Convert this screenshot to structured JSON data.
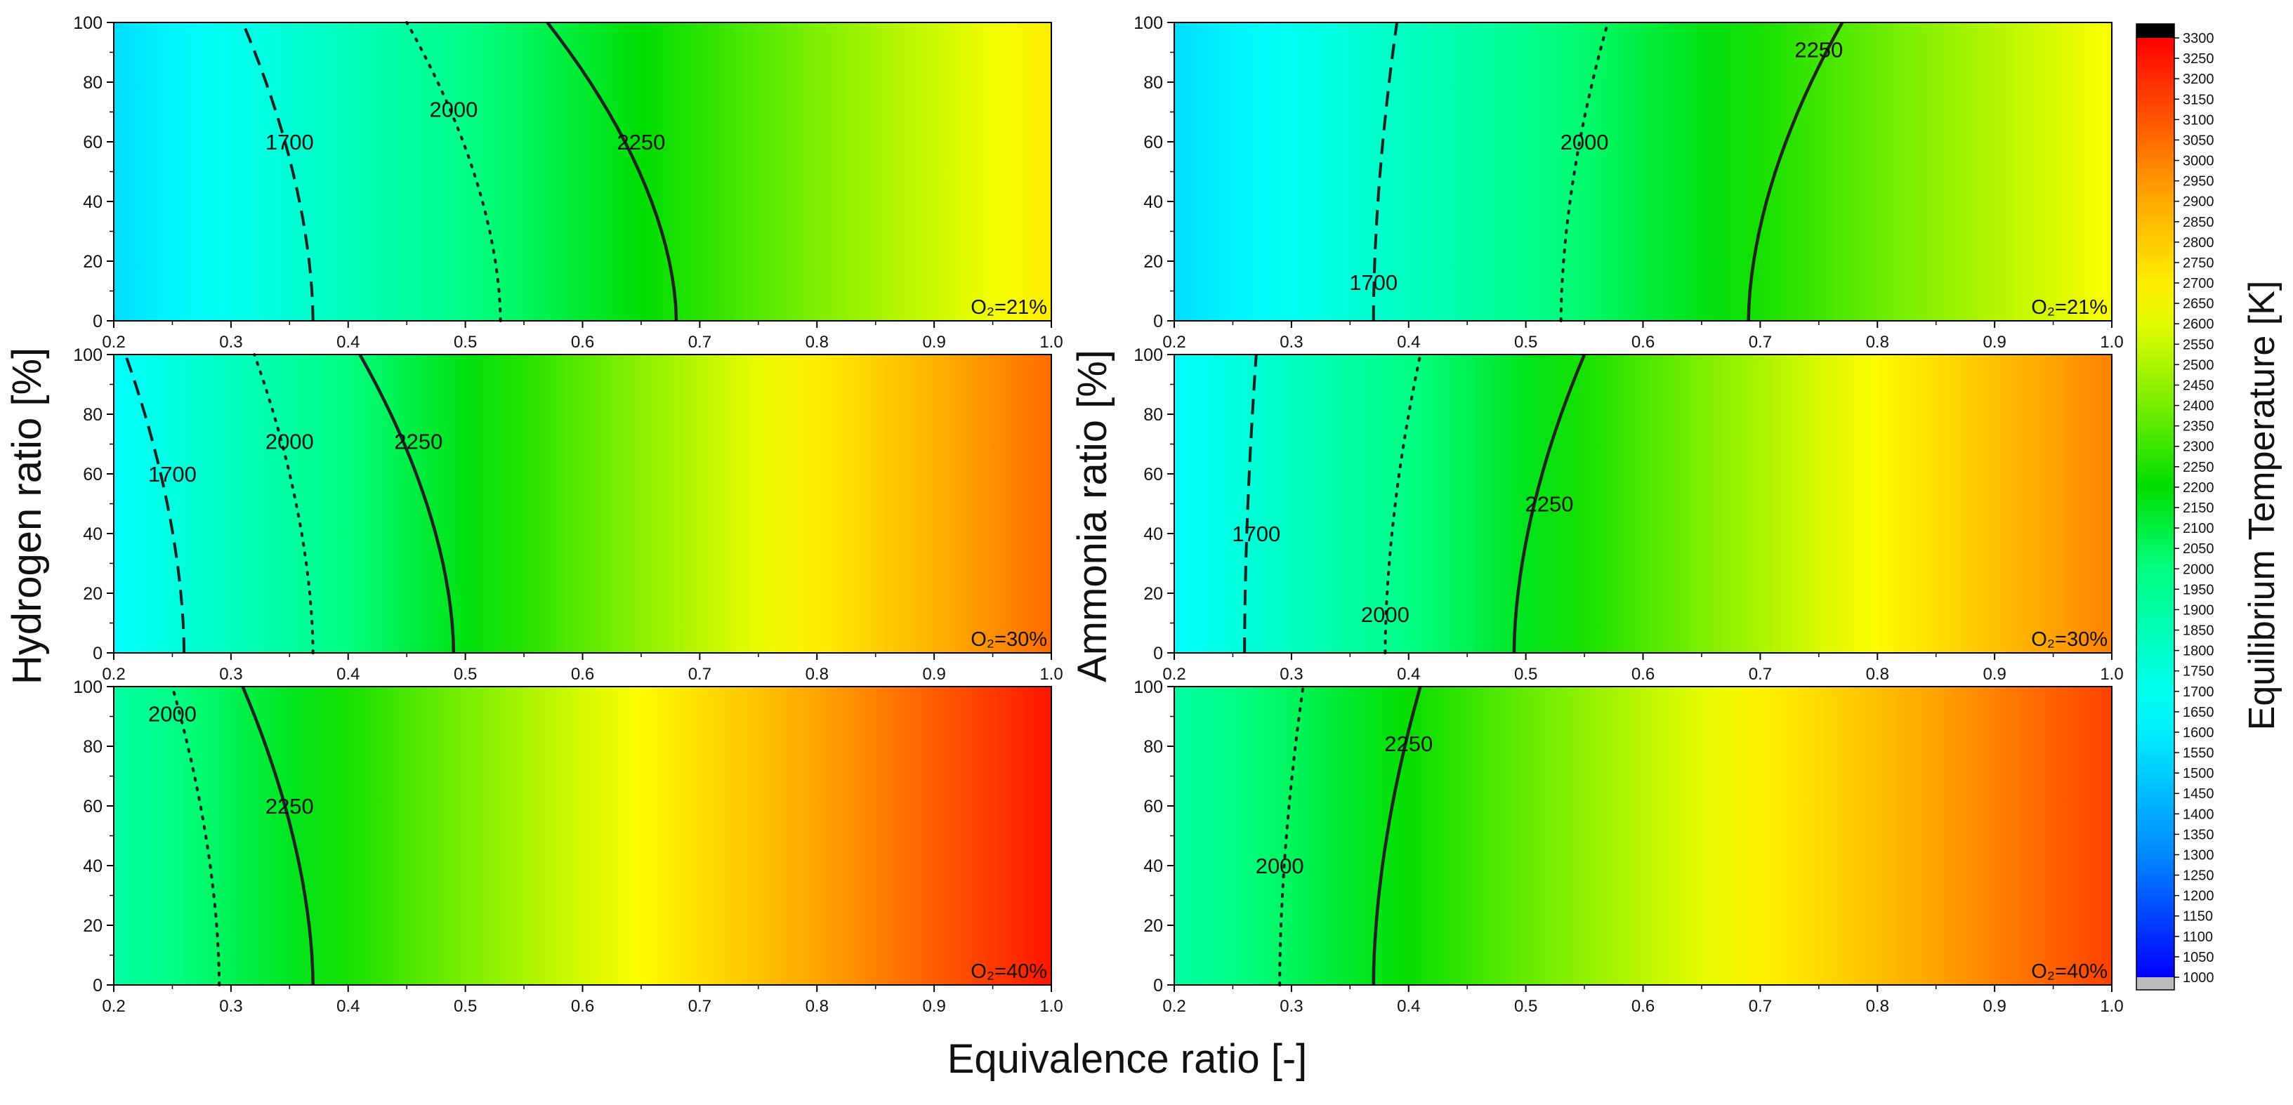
{
  "figure": {
    "left_ylabel": "Hydrogen ratio [%]",
    "right_ylabel": "Ammonia ratio [%]",
    "xlabel": "Equivalence ratio [-]",
    "colorbar_label": "Equilibrium Temperature [K]"
  },
  "chart_data": {
    "type": "heatmap",
    "x_range": [
      0.2,
      1.0
    ],
    "y_range": [
      0,
      100
    ],
    "x_ticks": [
      "0.2",
      "0.3",
      "0.4",
      "0.5",
      "0.6",
      "0.7",
      "0.8",
      "0.9",
      "1.0"
    ],
    "y_ticks": [
      "0",
      "20",
      "40",
      "60",
      "80",
      "100"
    ],
    "colorbar": {
      "range": [
        1000,
        3300
      ],
      "ticks": [
        "1000",
        "1050",
        "1100",
        "1150",
        "1200",
        "1250",
        "1300",
        "1350",
        "1400",
        "1450",
        "1500",
        "1550",
        "1600",
        "1650",
        "1700",
        "1750",
        "1800",
        "1850",
        "1900",
        "1950",
        "2000",
        "2050",
        "2100",
        "2150",
        "2200",
        "2250",
        "2300",
        "2350",
        "2400",
        "2450",
        "2500",
        "2550",
        "2600",
        "2650",
        "2700",
        "2750",
        "2800",
        "2850",
        "2900",
        "2950",
        "3000",
        "3050",
        "3100",
        "3150",
        "3200",
        "3250",
        "3300"
      ],
      "stops": [
        {
          "t": 1000,
          "color": "#0000ff"
        },
        {
          "t": 1300,
          "color": "#0088ff"
        },
        {
          "t": 1650,
          "color": "#00ffff"
        },
        {
          "t": 2000,
          "color": "#00ff80"
        },
        {
          "t": 2200,
          "color": "#00dd00"
        },
        {
          "t": 2400,
          "color": "#77ee00"
        },
        {
          "t": 2650,
          "color": "#ffff00"
        },
        {
          "t": 2900,
          "color": "#ffaa00"
        },
        {
          "t": 3100,
          "color": "#ff5500"
        },
        {
          "t": 3300,
          "color": "#ff0000"
        }
      ],
      "over_color": "#000000",
      "under_color": "#bbbbbb"
    },
    "panels": [
      {
        "column": "left",
        "fuel": "Hydrogen",
        "o2_label": "O₂=21%",
        "temperature_range": [
          1550,
          2700
        ],
        "contours": [
          {
            "level": "1700",
            "style": "dashed",
            "x_at_y0": 0.37,
            "x_at_y100": 0.31,
            "label_x": 0.35,
            "label_y": 60
          },
          {
            "level": "2000",
            "style": "dotted",
            "x_at_y0": 0.53,
            "x_at_y100": 0.45,
            "label_x": 0.49,
            "label_y": 71
          },
          {
            "level": "2250",
            "style": "solid",
            "x_at_y0": 0.68,
            "x_at_y100": 0.57,
            "label_x": 0.65,
            "label_y": 60
          }
        ]
      },
      {
        "column": "right",
        "fuel": "Ammonia",
        "o2_label": "O₂=21%",
        "temperature_range": [
          1550,
          2650
        ],
        "contours": [
          {
            "level": "1700",
            "style": "dashed",
            "x_at_y0": 0.37,
            "x_at_y100": 0.39,
            "label_x": 0.37,
            "label_y": 13
          },
          {
            "level": "2000",
            "style": "dotted",
            "x_at_y0": 0.53,
            "x_at_y100": 0.57,
            "label_x": 0.55,
            "label_y": 60
          },
          {
            "level": "2250",
            "style": "solid",
            "x_at_y0": 0.69,
            "x_at_y100": 0.77,
            "label_x": 0.75,
            "label_y": 91
          }
        ]
      },
      {
        "column": "left",
        "fuel": "Hydrogen",
        "o2_label": "O₂=30%",
        "temperature_range": [
          1650,
          3050
        ],
        "contours": [
          {
            "level": "1700",
            "style": "dashed",
            "x_at_y0": 0.26,
            "x_at_y100": 0.21,
            "label_x": 0.25,
            "label_y": 60
          },
          {
            "level": "2000",
            "style": "dotted",
            "x_at_y0": 0.37,
            "x_at_y100": 0.32,
            "label_x": 0.35,
            "label_y": 71
          },
          {
            "level": "2250",
            "style": "solid",
            "x_at_y0": 0.49,
            "x_at_y100": 0.41,
            "label_x": 0.46,
            "label_y": 71
          }
        ]
      },
      {
        "column": "right",
        "fuel": "Ammonia",
        "o2_label": "O₂=30%",
        "temperature_range": [
          1650,
          3000
        ],
        "contours": [
          {
            "level": "1700",
            "style": "dashed",
            "x_at_y0": 0.26,
            "x_at_y100": 0.27,
            "label_x": 0.27,
            "label_y": 40
          },
          {
            "level": "2000",
            "style": "dotted",
            "x_at_y0": 0.38,
            "x_at_y100": 0.41,
            "label_x": 0.38,
            "label_y": 13
          },
          {
            "level": "2250",
            "style": "solid",
            "x_at_y0": 0.49,
            "x_at_y100": 0.55,
            "label_x": 0.52,
            "label_y": 50
          }
        ]
      },
      {
        "column": "left",
        "fuel": "Hydrogen",
        "o2_label": "O₂=40%",
        "temperature_range": [
          1900,
          3250
        ],
        "contours": [
          {
            "level": "2000",
            "style": "dotted",
            "x_at_y0": 0.29,
            "x_at_y100": 0.25,
            "label_x": 0.25,
            "label_y": 91
          },
          {
            "level": "2250",
            "style": "solid",
            "x_at_y0": 0.37,
            "x_at_y100": 0.31,
            "label_x": 0.35,
            "label_y": 60
          }
        ]
      },
      {
        "column": "right",
        "fuel": "Ammonia",
        "o2_label": "O₂=40%",
        "temperature_range": [
          1900,
          3150
        ],
        "contours": [
          {
            "level": "2000",
            "style": "dotted",
            "x_at_y0": 0.29,
            "x_at_y100": 0.31,
            "label_x": 0.29,
            "label_y": 40
          },
          {
            "level": "2250",
            "style": "solid",
            "x_at_y0": 0.37,
            "x_at_y100": 0.41,
            "label_x": 0.4,
            "label_y": 81
          }
        ]
      }
    ]
  }
}
